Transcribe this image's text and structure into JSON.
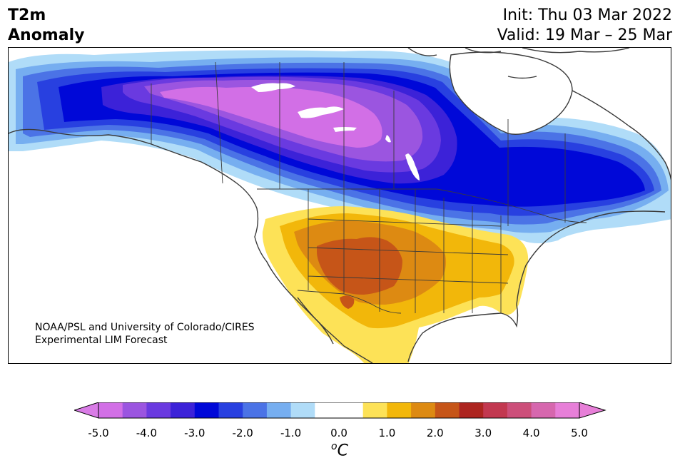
{
  "title": {
    "line1": "T2m",
    "line2": "Anomaly"
  },
  "init": "Init: Thu 03 Mar 2022",
  "valid": "Valid: 19 Mar – 25 Mar",
  "credit": {
    "line1": "NOAA/PSL and University of Colorado/CIRES",
    "line2": "Experimental LIM Forecast"
  },
  "colorbar": {
    "ticks": [
      "-5.0",
      "-4.0",
      "-3.0",
      "-2.0",
      "-1.0",
      "0.0",
      "1.0",
      "2.0",
      "3.0",
      "4.0",
      "5.0"
    ],
    "unit_base": "C",
    "unit_sup": "o",
    "low_extend_color": "#d97ce6",
    "high_extend_color": "#e77fd8",
    "colors": [
      "#d26fe6",
      "#9b55e0",
      "#6a3ae0",
      "#3c22d8",
      "#0008d8",
      "#2840e0",
      "#4b73e6",
      "#76aef0",
      "#b0dcf8",
      "#ffffff",
      "#ffffff",
      "#fde257",
      "#f2b70a",
      "#dd8a12",
      "#c65518",
      "#ad2520",
      "#c23850",
      "#cc4f7a",
      "#d667ae",
      "#e77fd8"
    ]
  },
  "map_colors": {
    "deep_purple": "#d26fe6",
    "purple": "#9b55e0",
    "violet": "#6a3ae0",
    "indigo": "#3c22d8",
    "blue": "#0008d8",
    "mid_blue": "#2840e0",
    "light_blue": "#4b73e6",
    "sky": "#76aef0",
    "pale": "#b0dcf8",
    "yellow": "#fde257",
    "gold": "#f2b70a",
    "orange": "#dd8a12",
    "rust": "#c65518"
  }
}
